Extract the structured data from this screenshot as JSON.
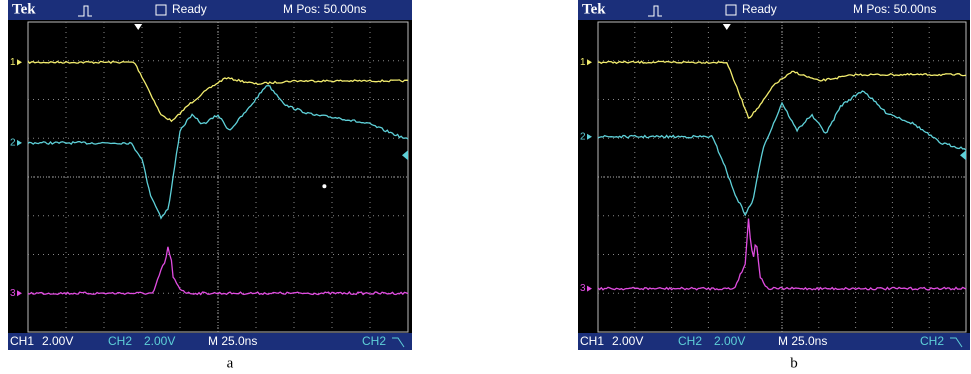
{
  "panels": [
    {
      "header": {
        "brand": "Tek",
        "status": "Ready",
        "position": "M Pos: 50.00ns"
      },
      "footer": {
        "ch1": "CH1",
        "ch1_scale": "2.00V",
        "ch2": "CH2",
        "ch2_scale": "2.00V",
        "timebase": "M 25.0ns",
        "trigger_source": "CH2"
      },
      "channel_markers": [
        "1",
        "2",
        "3"
      ],
      "caption": "a"
    },
    {
      "header": {
        "brand": "Tek",
        "status": "Ready",
        "position": "M Pos: 50.00ns"
      },
      "footer": {
        "ch1": "CH1",
        "ch1_scale": "2.00V",
        "ch2": "CH2",
        "ch2_scale": "2.00V",
        "timebase": "M 25.0ns",
        "trigger_source": "CH2"
      },
      "channel_markers": [
        "1",
        "2",
        "3"
      ],
      "caption": "b"
    }
  ]
}
